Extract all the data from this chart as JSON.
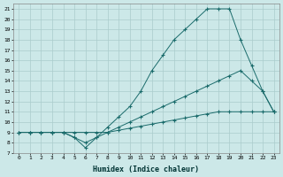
{
  "xlabel": "Humidex (Indice chaleur)",
  "xlim": [
    -0.5,
    23.5
  ],
  "ylim": [
    7,
    21.5
  ],
  "xticks": [
    0,
    1,
    2,
    3,
    4,
    5,
    6,
    7,
    8,
    9,
    10,
    11,
    12,
    13,
    14,
    15,
    16,
    17,
    18,
    19,
    20,
    21,
    22,
    23
  ],
  "yticks": [
    7,
    8,
    9,
    10,
    11,
    12,
    13,
    14,
    15,
    16,
    17,
    18,
    19,
    20,
    21
  ],
  "bg_color": "#cce8e8",
  "line_color": "#1a6b6b",
  "grid_color": "#aacccc",
  "lines": [
    {
      "x": [
        0,
        1,
        2,
        3,
        4,
        5,
        6,
        7,
        8,
        9,
        10,
        11,
        12,
        13,
        14,
        15,
        16,
        17,
        18,
        19,
        20,
        21,
        22,
        23
      ],
      "y": [
        9,
        9,
        9,
        9,
        9,
        8.5,
        7.5,
        8.5,
        9.5,
        10.5,
        11.5,
        13,
        15,
        16.5,
        18,
        19,
        20,
        21,
        21,
        21,
        18,
        15.5,
        13,
        11
      ]
    },
    {
      "x": [
        0,
        1,
        2,
        3,
        4,
        5,
        6,
        7,
        8,
        9,
        10,
        11,
        12,
        13,
        14,
        15,
        16,
        17,
        18,
        19,
        20,
        21,
        22,
        23
      ],
      "y": [
        9,
        9,
        9,
        9,
        9,
        8.5,
        8,
        8.5,
        9,
        9.5,
        10,
        10.5,
        11,
        11.5,
        12,
        12.5,
        13,
        13.5,
        14,
        14.5,
        15,
        14,
        13,
        11
      ]
    },
    {
      "x": [
        0,
        1,
        2,
        3,
        4,
        5,
        6,
        7,
        8,
        9,
        10,
        11,
        12,
        13,
        14,
        15,
        16,
        17,
        18,
        19,
        20,
        21,
        22,
        23
      ],
      "y": [
        9,
        9,
        9,
        9,
        9,
        9,
        9,
        9,
        9,
        9.2,
        9.4,
        9.6,
        9.8,
        10,
        10.2,
        10.4,
        10.6,
        10.8,
        11,
        11,
        11,
        11,
        11,
        11
      ]
    }
  ]
}
